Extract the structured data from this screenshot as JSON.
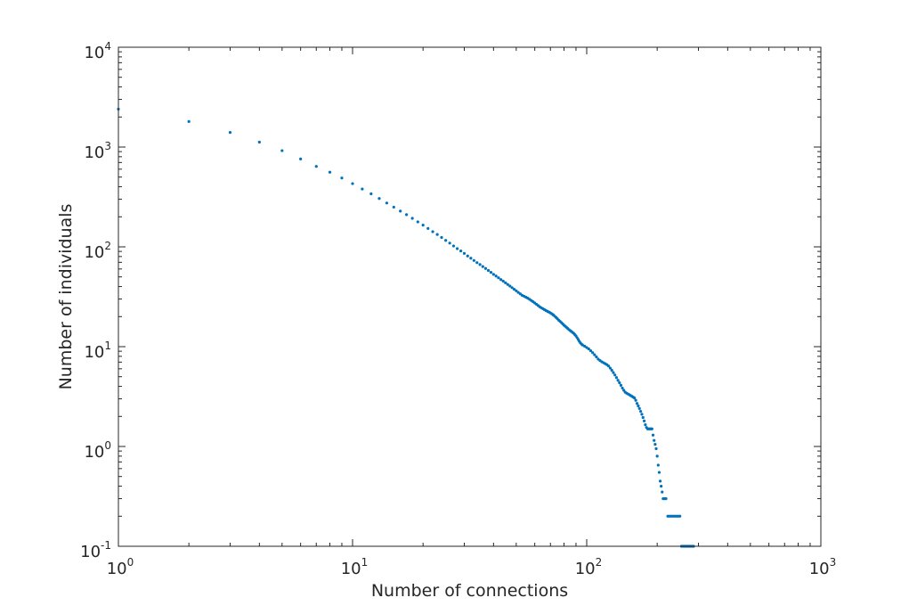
{
  "chart_data": {
    "type": "scatter",
    "title": "",
    "xlabel": "Number of connections",
    "ylabel": "Number of individuals",
    "xscale": "log",
    "yscale": "log",
    "xlim": [
      1,
      1000
    ],
    "ylim": [
      0.1,
      10000
    ],
    "x_ticks": [
      {
        "base": "10",
        "exp": "0"
      },
      {
        "base": "10",
        "exp": "1"
      },
      {
        "base": "10",
        "exp": "2"
      },
      {
        "base": "10",
        "exp": "3"
      }
    ],
    "y_ticks": [
      {
        "base": "10",
        "exp": "-1"
      },
      {
        "base": "10",
        "exp": "0"
      },
      {
        "base": "10",
        "exp": "1"
      },
      {
        "base": "10",
        "exp": "2"
      },
      {
        "base": "10",
        "exp": "3"
      },
      {
        "base": "10",
        "exp": "4"
      }
    ],
    "grid": false,
    "box": true,
    "marker_color": "#0072bd",
    "axis_color": "#262626",
    "series": [
      {
        "points": [
          [
            1,
            2400
          ],
          [
            2,
            1800
          ],
          [
            3,
            1400
          ],
          [
            4,
            1120
          ],
          [
            5,
            920
          ],
          [
            6,
            760
          ],
          [
            7,
            640
          ],
          [
            8,
            560
          ],
          [
            9,
            490
          ],
          [
            10,
            430
          ],
          [
            11,
            380
          ],
          [
            12,
            340
          ],
          [
            13,
            305
          ],
          [
            14,
            275
          ],
          [
            15,
            250
          ],
          [
            16,
            228
          ],
          [
            17,
            210
          ],
          [
            18,
            193
          ],
          [
            19,
            178
          ],
          [
            20,
            165
          ],
          [
            21,
            153
          ],
          [
            22,
            142
          ],
          [
            23,
            133
          ],
          [
            24,
            124
          ],
          [
            25,
            116
          ],
          [
            26,
            109
          ],
          [
            27,
            102
          ],
          [
            28,
            96
          ],
          [
            29,
            91
          ],
          [
            30,
            86
          ],
          [
            31,
            81
          ],
          [
            32,
            77
          ],
          [
            33,
            73
          ],
          [
            34,
            69.5
          ],
          [
            35,
            66.5
          ],
          [
            36,
            63.5
          ],
          [
            37,
            60.7
          ],
          [
            38,
            58
          ],
          [
            39,
            55.5
          ],
          [
            40,
            53
          ],
          [
            41,
            51
          ],
          [
            42,
            49
          ],
          [
            43,
            47
          ],
          [
            44,
            45.3
          ],
          [
            45,
            43.6
          ],
          [
            46,
            42
          ],
          [
            47,
            40.5
          ],
          [
            48,
            39
          ],
          [
            49,
            37.6
          ],
          [
            50,
            36.3
          ],
          [
            51,
            35
          ],
          [
            52,
            33.8
          ],
          [
            53,
            32.7
          ],
          [
            54,
            32
          ],
          [
            55,
            31.3
          ],
          [
            56,
            30.6
          ],
          [
            57,
            29.8
          ],
          [
            58,
            29
          ],
          [
            59,
            28.2
          ],
          [
            60,
            27.4
          ],
          [
            61,
            26.6
          ],
          [
            62,
            25.8
          ],
          [
            63,
            25.1
          ],
          [
            64,
            24.5
          ],
          [
            65,
            24
          ],
          [
            66,
            23.5
          ],
          [
            67,
            23
          ],
          [
            68,
            22.6
          ],
          [
            69,
            22.2
          ],
          [
            70,
            21.8
          ],
          [
            71,
            21.3
          ],
          [
            72,
            20.8
          ],
          [
            73,
            20.2
          ],
          [
            74,
            19.6
          ],
          [
            75,
            19
          ],
          [
            76,
            18.4
          ],
          [
            77,
            17.9
          ],
          [
            78,
            17.4
          ],
          [
            79,
            16.9
          ],
          [
            80,
            16.4
          ],
          [
            81,
            16
          ],
          [
            82,
            15.6
          ],
          [
            83,
            15.2
          ],
          [
            84,
            14.8
          ],
          [
            85,
            14.5
          ],
          [
            86,
            14.2
          ],
          [
            87,
            13.9
          ],
          [
            88,
            13.6
          ],
          [
            89,
            13.2
          ],
          [
            90,
            12.8
          ],
          [
            91,
            12.3
          ],
          [
            92,
            11.8
          ],
          [
            93,
            11.3
          ],
          [
            94,
            10.9
          ],
          [
            95,
            10.6
          ],
          [
            96,
            10.4
          ],
          [
            98,
            10.1
          ],
          [
            100,
            9.8
          ],
          [
            102,
            9.5
          ],
          [
            104,
            9.1
          ],
          [
            106,
            8.7
          ],
          [
            108,
            8.3
          ],
          [
            110,
            7.9
          ],
          [
            112,
            7.5
          ],
          [
            114,
            7.25
          ],
          [
            116,
            7.05
          ],
          [
            118,
            6.9
          ],
          [
            120,
            6.75
          ],
          [
            122,
            6.6
          ],
          [
            124,
            6.4
          ],
          [
            126,
            6.1
          ],
          [
            128,
            5.8
          ],
          [
            130,
            5.5
          ],
          [
            132,
            5.2
          ],
          [
            134,
            4.9
          ],
          [
            136,
            4.6
          ],
          [
            138,
            4.35
          ],
          [
            140,
            4.1
          ],
          [
            142,
            3.85
          ],
          [
            144,
            3.65
          ],
          [
            146,
            3.5
          ],
          [
            148,
            3.42
          ],
          [
            150,
            3.36
          ],
          [
            152,
            3.3
          ],
          [
            154,
            3.24
          ],
          [
            156,
            3.18
          ],
          [
            158,
            3.12
          ],
          [
            160,
            3.06
          ],
          [
            162,
            2.9
          ],
          [
            164,
            2.7
          ],
          [
            166,
            2.55
          ],
          [
            168,
            2.4
          ],
          [
            170,
            2.25
          ],
          [
            172,
            2.1
          ],
          [
            174,
            1.95
          ],
          [
            176,
            1.8
          ],
          [
            178,
            1.65
          ],
          [
            180,
            1.55
          ],
          [
            182,
            1.5
          ],
          [
            184,
            1.5
          ],
          [
            186,
            1.5
          ],
          [
            188,
            1.5
          ],
          [
            190,
            1.5
          ],
          [
            192,
            1.3
          ],
          [
            194,
            1.15
          ],
          [
            196,
            1.05
          ],
          [
            198,
            0.95
          ],
          [
            200,
            0.8
          ],
          [
            202,
            0.65
          ],
          [
            204,
            0.55
          ],
          [
            206,
            0.45
          ],
          [
            208,
            0.4
          ],
          [
            210,
            0.35
          ],
          [
            212,
            0.3
          ],
          [
            214,
            0.3
          ],
          [
            216,
            0.3
          ],
          [
            218,
            0.3
          ],
          [
            222,
            0.2
          ],
          [
            226,
            0.2
          ],
          [
            230,
            0.2
          ],
          [
            234,
            0.2
          ],
          [
            238,
            0.2
          ],
          [
            242,
            0.2
          ],
          [
            246,
            0.2
          ],
          [
            250,
            0.2
          ],
          [
            254,
            0.1
          ],
          [
            258,
            0.1
          ],
          [
            262,
            0.1
          ],
          [
            266,
            0.1
          ],
          [
            270,
            0.1
          ],
          [
            274,
            0.1
          ],
          [
            278,
            0.1
          ],
          [
            282,
            0.1
          ],
          [
            286,
            0.1
          ]
        ]
      }
    ]
  }
}
